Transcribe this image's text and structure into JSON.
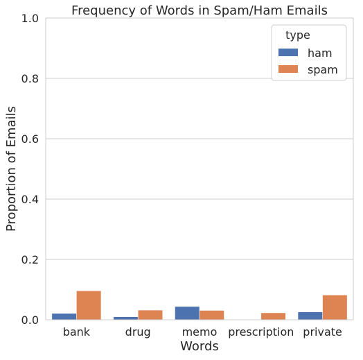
{
  "chart_data": {
    "type": "bar",
    "title": "Frequency of Words in Spam/Ham Emails",
    "xlabel": "Words",
    "ylabel": "Proportion of Emails",
    "categories": [
      "bank",
      "drug",
      "memo",
      "prescription",
      "private"
    ],
    "series": [
      {
        "name": "ham",
        "color": "#4C72B0",
        "values": [
          0.021,
          0.01,
          0.044,
          0.001,
          0.026
        ]
      },
      {
        "name": "spam",
        "color": "#DD8452",
        "values": [
          0.096,
          0.032,
          0.031,
          0.023,
          0.082
        ]
      }
    ],
    "ylim": [
      0,
      1.0
    ],
    "yticks": [
      "0.0",
      "0.2",
      "0.4",
      "0.6",
      "0.8",
      "1.0"
    ],
    "grid": "horizontal",
    "legend": {
      "title": "type",
      "placement": "top-right"
    }
  }
}
